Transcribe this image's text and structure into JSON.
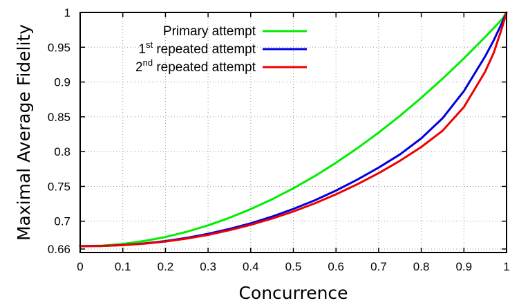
{
  "chart_data": {
    "type": "line",
    "title": "",
    "xlabel": "Concurrence",
    "ylabel": "Maximal Average Fidelity",
    "xlim": [
      0,
      1
    ],
    "ylim": [
      0.655,
      1.0
    ],
    "grid": true,
    "legend_position": "top-left",
    "xticks": [
      0,
      0.1,
      0.2,
      0.3,
      0.4,
      0.5,
      0.6,
      0.7,
      0.8,
      0.9,
      1
    ],
    "xtick_labels": [
      "0",
      "0.1",
      "0.2",
      "0.3",
      "0.4",
      "0.5",
      "0.6",
      "0.7",
      "0.8",
      "0.9",
      "1"
    ],
    "yticks": [
      0.66,
      0.7,
      0.75,
      0.8,
      0.85,
      0.9,
      0.95,
      1
    ],
    "ytick_labels": [
      "0.66",
      "0.7",
      "0.75",
      "0.8",
      "0.85",
      "0.9",
      "0.95",
      "1"
    ],
    "x": [
      0,
      0.05,
      0.1,
      0.15,
      0.2,
      0.25,
      0.3,
      0.35,
      0.4,
      0.45,
      0.5,
      0.55,
      0.6,
      0.65,
      0.7,
      0.75,
      0.8,
      0.85,
      0.9,
      0.95,
      0.97,
      0.99,
      1
    ],
    "series": [
      {
        "name": "Primary attempt",
        "name_parts": [
          "Primary attempt",
          "",
          ""
        ],
        "color": "#00ee00",
        "values": [
          0.664,
          0.6648,
          0.6673,
          0.6715,
          0.6773,
          0.6848,
          0.694,
          0.7048,
          0.7173,
          0.7315,
          0.7473,
          0.7648,
          0.784,
          0.8048,
          0.8273,
          0.8515,
          0.8773,
          0.9048,
          0.934,
          0.9648,
          0.9775,
          0.9906,
          1.0
        ]
      },
      {
        "name": "1st repeated attempt",
        "name_parts": [
          "1",
          "st",
          " repeated attempt"
        ],
        "color": "#0000dd",
        "values": [
          0.664,
          0.6643,
          0.6656,
          0.668,
          0.6714,
          0.676,
          0.6818,
          0.6888,
          0.697,
          0.7066,
          0.7176,
          0.73,
          0.744,
          0.7597,
          0.777,
          0.796,
          0.819,
          0.848,
          0.887,
          0.937,
          0.96,
          0.986,
          1.0
        ]
      },
      {
        "name": "2nd repeated attempt",
        "name_parts": [
          "2",
          "nd",
          " repeated attempt"
        ],
        "color": "#ee0000",
        "values": [
          0.664,
          0.6643,
          0.6655,
          0.6676,
          0.6708,
          0.675,
          0.6804,
          0.687,
          0.6948,
          0.7038,
          0.714,
          0.7256,
          0.7386,
          0.753,
          0.769,
          0.7868,
          0.8066,
          0.83,
          0.864,
          0.915,
          0.942,
          0.979,
          1.0
        ]
      }
    ]
  }
}
